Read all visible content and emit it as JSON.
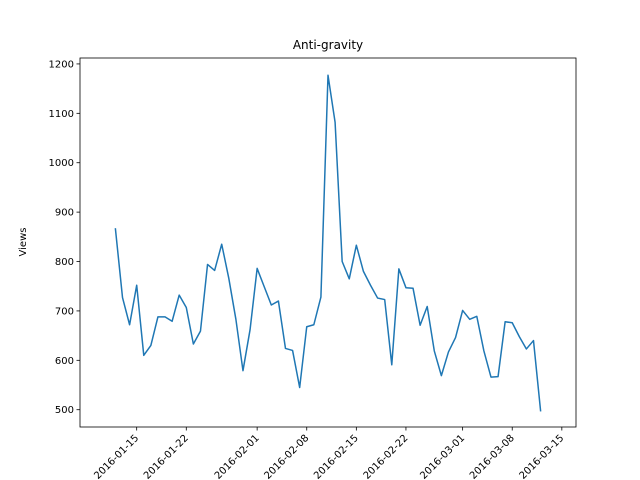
{
  "chart_data": {
    "type": "line",
    "title": "Anti-gravity",
    "xlabel": "",
    "ylabel": "Views",
    "grid": false,
    "legend": "none",
    "x_range": [
      "2016-01-07",
      "2016-03-17"
    ],
    "ylim": [
      465,
      1212
    ],
    "x_ticks": [
      "2016-01-15",
      "2016-01-22",
      "2016-02-01",
      "2016-02-08",
      "2016-02-15",
      "2016-02-22",
      "2016-03-01",
      "2016-03-08",
      "2016-03-15"
    ],
    "y_ticks": [
      500,
      600,
      700,
      800,
      900,
      1000,
      1100,
      1200
    ],
    "series": [
      {
        "color": "#1f77b4",
        "x": [
          "2016-01-12",
          "2016-01-13",
          "2016-01-14",
          "2016-01-15",
          "2016-01-16",
          "2016-01-17",
          "2016-01-18",
          "2016-01-19",
          "2016-01-20",
          "2016-01-21",
          "2016-01-22",
          "2016-01-23",
          "2016-01-24",
          "2016-01-25",
          "2016-01-26",
          "2016-01-27",
          "2016-01-28",
          "2016-01-29",
          "2016-01-30",
          "2016-01-31",
          "2016-02-01",
          "2016-02-02",
          "2016-02-03",
          "2016-02-04",
          "2016-02-05",
          "2016-02-06",
          "2016-02-07",
          "2016-02-08",
          "2016-02-09",
          "2016-02-10",
          "2016-02-11",
          "2016-02-12",
          "2016-02-13",
          "2016-02-14",
          "2016-02-15",
          "2016-02-16",
          "2016-02-17",
          "2016-02-18",
          "2016-02-19",
          "2016-02-20",
          "2016-02-21",
          "2016-02-22",
          "2016-02-23",
          "2016-02-24",
          "2016-02-25",
          "2016-02-26",
          "2016-02-27",
          "2016-02-28",
          "2016-02-29",
          "2016-03-01",
          "2016-03-02",
          "2016-03-03",
          "2016-03-04",
          "2016-03-05",
          "2016-03-06",
          "2016-03-07",
          "2016-03-08",
          "2016-03-09",
          "2016-03-10",
          "2016-03-11",
          "2016-03-12"
        ],
        "values": [
          866,
          727,
          672,
          752,
          610,
          630,
          688,
          688,
          679,
          732,
          707,
          633,
          659,
          794,
          782,
          835,
          766,
          683,
          579,
          662,
          786,
          749,
          712,
          720,
          624,
          620,
          545,
          668,
          672,
          728,
          1177,
          1082,
          800,
          765,
          833,
          780,
          752,
          726,
          723,
          591,
          785,
          747,
          746,
          671,
          709,
          619,
          569,
          617,
          646,
          701,
          683,
          689,
          619,
          566,
          567,
          678,
          676,
          648,
          623,
          640,
          498
        ]
      }
    ]
  }
}
